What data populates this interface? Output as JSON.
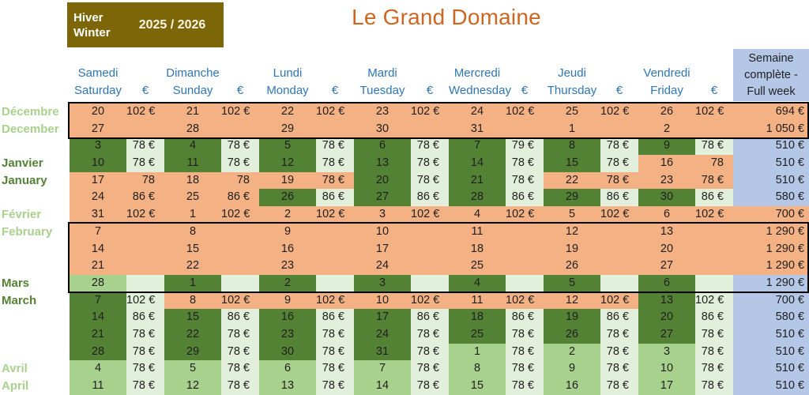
{
  "title": "Le Grand Domaine",
  "season": {
    "label_fr": "Hiver",
    "label_en": "Winter",
    "years": "2025 / 2026"
  },
  "week_header": {
    "line1": "Semaine",
    "line2": "complète -",
    "line3": "Full week"
  },
  "euro_symbol": "€",
  "days": [
    {
      "fr": "Samedi",
      "en": "Saturday"
    },
    {
      "fr": "Dimanche",
      "en": "Sunday"
    },
    {
      "fr": "Lundi",
      "en": "Monday"
    },
    {
      "fr": "Mardi",
      "en": "Tuesday"
    },
    {
      "fr": "Mercredi",
      "en": "Wednesday"
    },
    {
      "fr": "Jeudi",
      "en": "Thursday"
    },
    {
      "fr": "Vendredi",
      "en": "Friday"
    }
  ],
  "colors": {
    "salmon": "#F4B183",
    "dark-green": "#548235",
    "light-green": "#E2EFDA",
    "medium-green": "#A9D18E",
    "week-blue": "#B4C7E7",
    "olive": "#7D6608",
    "title-orange": "#CC6620",
    "header-blue": "#2E75B6",
    "month-light": "#A9D18E",
    "month-dark": "#538135"
  },
  "rows": [
    {
      "month": {
        "text": "Décembre",
        "shade": "light"
      },
      "cells": [
        [
          "20",
          "S"
        ],
        [
          "102 €",
          "S"
        ],
        [
          "21",
          "S"
        ],
        [
          "102 €",
          "S"
        ],
        [
          "22",
          "S"
        ],
        [
          "102 €",
          "S"
        ],
        [
          "23",
          "S"
        ],
        [
          "102 €",
          "S"
        ],
        [
          "24",
          "S"
        ],
        [
          "102 €",
          "S"
        ],
        [
          "25",
          "S"
        ],
        [
          "102 €",
          "S"
        ],
        [
          "26",
          "S"
        ],
        [
          "102 €",
          "S"
        ]
      ],
      "week": [
        "694 €",
        "S"
      ]
    },
    {
      "month": {
        "text": "December",
        "shade": "light"
      },
      "cells": [
        [
          "27",
          "S"
        ],
        [
          "",
          "S"
        ],
        [
          "28",
          "S"
        ],
        [
          "",
          "S"
        ],
        [
          "29",
          "S"
        ],
        [
          "",
          "S"
        ],
        [
          "30",
          "S"
        ],
        [
          "",
          "S"
        ],
        [
          "31",
          "S"
        ],
        [
          "",
          "S"
        ],
        [
          "1",
          "S"
        ],
        [
          "",
          "S"
        ],
        [
          "2",
          "S"
        ],
        [
          "",
          "S"
        ]
      ],
      "week": [
        "1 050 €",
        "S"
      ]
    },
    {
      "month": null,
      "cells": [
        [
          "3",
          "DG"
        ],
        [
          "78 €",
          "LG"
        ],
        [
          "4",
          "DG"
        ],
        [
          "78 €",
          "LG"
        ],
        [
          "5",
          "DG"
        ],
        [
          "78 €",
          "LG"
        ],
        [
          "6",
          "DG"
        ],
        [
          "78 €",
          "LG"
        ],
        [
          "7",
          "DG"
        ],
        [
          "79 €",
          "LG"
        ],
        [
          "8",
          "DG"
        ],
        [
          "78 €",
          "LG"
        ],
        [
          "9",
          "DG"
        ],
        [
          "78 €",
          "LG"
        ]
      ],
      "week": [
        "510 €",
        "BL"
      ]
    },
    {
      "month": {
        "text": "Janvier",
        "shade": "dark"
      },
      "cells": [
        [
          "10",
          "DG"
        ],
        [
          "78 €",
          "LG"
        ],
        [
          "11",
          "DG"
        ],
        [
          "78 €",
          "LG"
        ],
        [
          "12",
          "DG"
        ],
        [
          "78 €",
          "LG"
        ],
        [
          "13",
          "DG"
        ],
        [
          "78 €",
          "LG"
        ],
        [
          "14",
          "DG"
        ],
        [
          "78 €",
          "LG"
        ],
        [
          "15",
          "DG"
        ],
        [
          "78 €",
          "LG"
        ],
        [
          "16",
          "S"
        ],
        [
          "78",
          "S"
        ]
      ],
      "week": [
        "510 €",
        "BL"
      ]
    },
    {
      "month": {
        "text": "January",
        "shade": "dark"
      },
      "cells": [
        [
          "17",
          "S"
        ],
        [
          "78",
          "S"
        ],
        [
          "18",
          "S"
        ],
        [
          "78",
          "S"
        ],
        [
          "19",
          "S"
        ],
        [
          "78 €",
          "S"
        ],
        [
          "20",
          "DG"
        ],
        [
          "78 €",
          "LG"
        ],
        [
          "21",
          "DG"
        ],
        [
          "78 €",
          "LG"
        ],
        [
          "22",
          "S"
        ],
        [
          "78 €",
          "S"
        ],
        [
          "23",
          "S"
        ],
        [
          "78 €",
          "S"
        ]
      ],
      "week": [
        "510 €",
        "BL"
      ]
    },
    {
      "month": null,
      "cells": [
        [
          "24",
          "S"
        ],
        [
          "86 €",
          "S"
        ],
        [
          "25",
          "S"
        ],
        [
          "86 €",
          "S"
        ],
        [
          "26",
          "DG"
        ],
        [
          "86 €",
          "LG"
        ],
        [
          "27",
          "DG"
        ],
        [
          "86 €",
          "LG"
        ],
        [
          "28",
          "DG"
        ],
        [
          "86 €",
          "LG"
        ],
        [
          "29",
          "DG"
        ],
        [
          "86 €",
          "LG"
        ],
        [
          "30",
          "DG"
        ],
        [
          "86 €",
          "LG"
        ]
      ],
      "week": [
        "580 €",
        "BL"
      ]
    },
    {
      "month": {
        "text": "Février",
        "shade": "light"
      },
      "cells": [
        [
          "31",
          "S"
        ],
        [
          "102 €",
          "S"
        ],
        [
          "1",
          "S"
        ],
        [
          "102 €",
          "S"
        ],
        [
          "2",
          "S"
        ],
        [
          "102 €",
          "S"
        ],
        [
          "3",
          "S"
        ],
        [
          "102 €",
          "S"
        ],
        [
          "4",
          "S"
        ],
        [
          "102 €",
          "S"
        ],
        [
          "5",
          "S"
        ],
        [
          "102 €",
          "S"
        ],
        [
          "6",
          "S"
        ],
        [
          "102 €",
          "S"
        ]
      ],
      "week": [
        "700 €",
        "S"
      ]
    },
    {
      "month": {
        "text": "February",
        "shade": "light"
      },
      "cells": [
        [
          "7",
          "S"
        ],
        [
          "",
          "S"
        ],
        [
          "8",
          "S"
        ],
        [
          "",
          "S"
        ],
        [
          "9",
          "S"
        ],
        [
          "",
          "S"
        ],
        [
          "10",
          "S"
        ],
        [
          "",
          "S"
        ],
        [
          "11",
          "S"
        ],
        [
          "",
          "S"
        ],
        [
          "12",
          "S"
        ],
        [
          "",
          "S"
        ],
        [
          "13",
          "S"
        ],
        [
          "",
          "S"
        ]
      ],
      "week": [
        "1 290 €",
        "S"
      ]
    },
    {
      "month": null,
      "cells": [
        [
          "14",
          "S"
        ],
        [
          "",
          "S"
        ],
        [
          "15",
          "S"
        ],
        [
          "",
          "S"
        ],
        [
          "16",
          "S"
        ],
        [
          "",
          "S"
        ],
        [
          "17",
          "S"
        ],
        [
          "",
          "S"
        ],
        [
          "18",
          "S"
        ],
        [
          "",
          "S"
        ],
        [
          "19",
          "S"
        ],
        [
          "",
          "S"
        ],
        [
          "20",
          "S"
        ],
        [
          "",
          "S"
        ]
      ],
      "week": [
        "1 290 €",
        "S"
      ]
    },
    {
      "month": null,
      "cells": [
        [
          "21",
          "S"
        ],
        [
          "",
          "S"
        ],
        [
          "22",
          "S"
        ],
        [
          "",
          "S"
        ],
        [
          "23",
          "S"
        ],
        [
          "",
          "S"
        ],
        [
          "24",
          "S"
        ],
        [
          "",
          "S"
        ],
        [
          "25",
          "S"
        ],
        [
          "",
          "S"
        ],
        [
          "26",
          "S"
        ],
        [
          "",
          "S"
        ],
        [
          "27",
          "S"
        ],
        [
          "",
          "S"
        ]
      ],
      "week": [
        "1 290 €",
        "S"
      ]
    },
    {
      "month": {
        "text": "Mars",
        "shade": "dark"
      },
      "cells": [
        [
          "28",
          "MG"
        ],
        [
          "",
          "LG"
        ],
        [
          "1",
          "DG"
        ],
        [
          "",
          "LG"
        ],
        [
          "2",
          "DG"
        ],
        [
          "",
          "LG"
        ],
        [
          "3",
          "DG"
        ],
        [
          "",
          "LG"
        ],
        [
          "4",
          "DG"
        ],
        [
          "",
          "LG"
        ],
        [
          "5",
          "DG"
        ],
        [
          "",
          "LG"
        ],
        [
          "6",
          "DG"
        ],
        [
          "",
          "LG"
        ]
      ],
      "week": [
        "1 290 €",
        "BL"
      ]
    },
    {
      "month": {
        "text": "March",
        "shade": "dark"
      },
      "cells": [
        [
          "7",
          "DG"
        ],
        [
          "102 €",
          "LG"
        ],
        [
          "8",
          "S"
        ],
        [
          "102 €",
          "S"
        ],
        [
          "9",
          "S"
        ],
        [
          "102 €",
          "S"
        ],
        [
          "10",
          "S"
        ],
        [
          "102 €",
          "S"
        ],
        [
          "11",
          "S"
        ],
        [
          "102 €",
          "S"
        ],
        [
          "12",
          "S"
        ],
        [
          "102 €",
          "S"
        ],
        [
          "13",
          "DG"
        ],
        [
          "102 €",
          "LG"
        ]
      ],
      "week": [
        "700 €",
        "BL"
      ]
    },
    {
      "month": null,
      "cells": [
        [
          "14",
          "DG"
        ],
        [
          "86 €",
          "LG"
        ],
        [
          "15",
          "DG"
        ],
        [
          "86 €",
          "LG"
        ],
        [
          "16",
          "DG"
        ],
        [
          "86 €",
          "LG"
        ],
        [
          "17",
          "DG"
        ],
        [
          "86 €",
          "LG"
        ],
        [
          "18",
          "DG"
        ],
        [
          "86 €",
          "LG"
        ],
        [
          "19",
          "DG"
        ],
        [
          "86 €",
          "LG"
        ],
        [
          "20",
          "DG"
        ],
        [
          "86 €",
          "LG"
        ]
      ],
      "week": [
        "580 €",
        "BL"
      ]
    },
    {
      "month": null,
      "cells": [
        [
          "21",
          "DG"
        ],
        [
          "78 €",
          "LG"
        ],
        [
          "22",
          "DG"
        ],
        [
          "78 €",
          "LG"
        ],
        [
          "23",
          "DG"
        ],
        [
          "78 €",
          "LG"
        ],
        [
          "24",
          "DG"
        ],
        [
          "78 €",
          "LG"
        ],
        [
          "25",
          "DG"
        ],
        [
          "78 €",
          "LG"
        ],
        [
          "26",
          "DG"
        ],
        [
          "78 €",
          "LG"
        ],
        [
          "27",
          "DG"
        ],
        [
          "78 €",
          "LG"
        ]
      ],
      "week": [
        "510 €",
        "BL"
      ]
    },
    {
      "month": null,
      "cells": [
        [
          "28",
          "DG"
        ],
        [
          "78 €",
          "LG"
        ],
        [
          "29",
          "DG"
        ],
        [
          "78 €",
          "LG"
        ],
        [
          "30",
          "DG"
        ],
        [
          "78 €",
          "LG"
        ],
        [
          "31",
          "DG"
        ],
        [
          "78 €",
          "LG"
        ],
        [
          "1",
          "MG"
        ],
        [
          "78 €",
          "LG"
        ],
        [
          "2",
          "MG"
        ],
        [
          "78 €",
          "LG"
        ],
        [
          "3",
          "MG"
        ],
        [
          "78 €",
          "LG"
        ]
      ],
      "week": [
        "510 €",
        "BL"
      ]
    },
    {
      "month": {
        "text": "Avril",
        "shade": "light"
      },
      "cells": [
        [
          "4",
          "MG"
        ],
        [
          "78 €",
          "LG"
        ],
        [
          "5",
          "MG"
        ],
        [
          "78 €",
          "LG"
        ],
        [
          "6",
          "MG"
        ],
        [
          "78 €",
          "LG"
        ],
        [
          "7",
          "MG"
        ],
        [
          "78 €",
          "LG"
        ],
        [
          "8",
          "MG"
        ],
        [
          "78 €",
          "LG"
        ],
        [
          "9",
          "MG"
        ],
        [
          "78 €",
          "LG"
        ],
        [
          "10",
          "MG"
        ],
        [
          "78 €",
          "LG"
        ]
      ],
      "week": [
        "510 €",
        "BL"
      ]
    },
    {
      "month": {
        "text": "April",
        "shade": "light"
      },
      "cells": [
        [
          "11",
          "MG"
        ],
        [
          "78 €",
          "LG"
        ],
        [
          "12",
          "MG"
        ],
        [
          "78 €",
          "LG"
        ],
        [
          "13",
          "MG"
        ],
        [
          "78 €",
          "LG"
        ],
        [
          "14",
          "MG"
        ],
        [
          "78 €",
          "LG"
        ],
        [
          "15",
          "MG"
        ],
        [
          "78 €",
          "LG"
        ],
        [
          "16",
          "MG"
        ],
        [
          "78 €",
          "LG"
        ],
        [
          "17",
          "MG"
        ],
        [
          "78 €",
          "LG"
        ]
      ],
      "week": [
        "510 €",
        "BL"
      ]
    }
  ]
}
